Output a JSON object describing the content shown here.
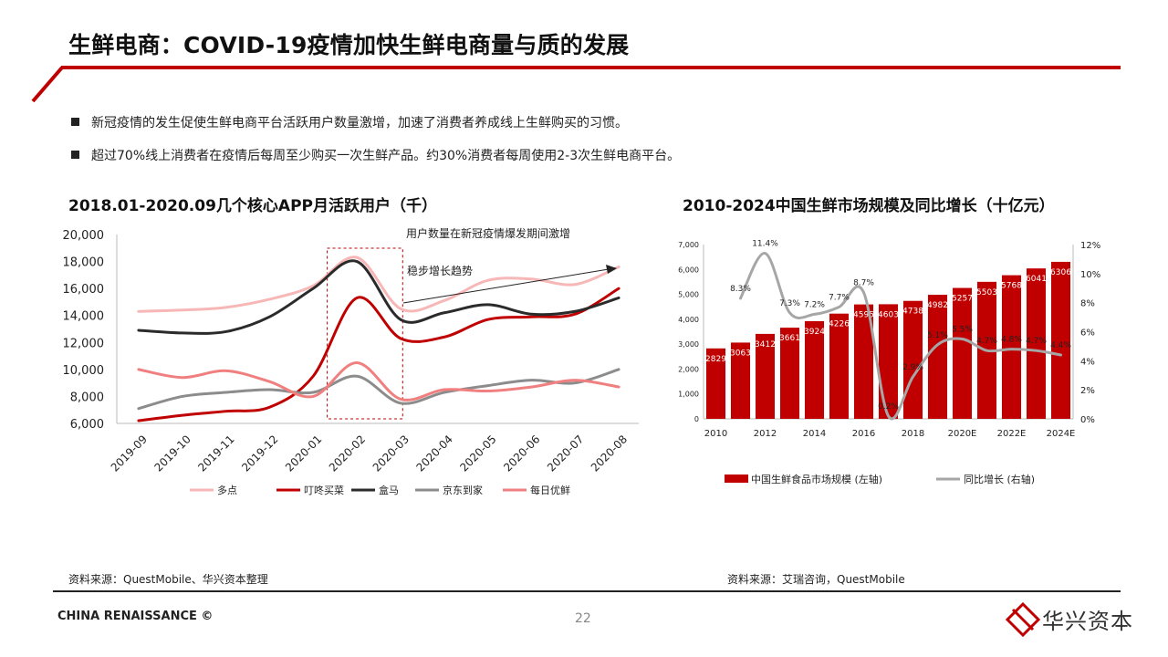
{
  "header": {
    "title": "生鲜电商：COVID-19疫情加快生鲜电商量与质的发展"
  },
  "bullets": [
    "新冠疫情的发生促使生鲜电商平台活跃用户数量激增，加速了消费者养成线上生鲜购买的习惯。",
    "超过70%线上消费者在疫情后每周至少购买一次生鲜产品。约30%消费者每周使用2-3次生鲜电商平台。"
  ],
  "colors": {
    "accent": "#c00000",
    "dark_red": "#c00000"
  },
  "chart_data": [
    {
      "type": "line",
      "title": "2018.01-2020.09几个核心APP月活跃用户（千）",
      "categories": [
        "2019-09",
        "2019-10",
        "2019-11",
        "2019-12",
        "2020-01",
        "2020-02",
        "2020-03",
        "2020-04",
        "2020-05",
        "2020-06",
        "2020-07",
        "2020-08"
      ],
      "ylim": [
        6000,
        20000
      ],
      "yticks": [
        "6,000",
        "8,000",
        "10,000",
        "12,000",
        "14,000",
        "16,000",
        "18,000",
        "20,000"
      ],
      "series": [
        {
          "name": "多点",
          "color": "#f7b7b7",
          "values": [
            14300,
            14400,
            14600,
            15200,
            16200,
            18300,
            14500,
            15100,
            16600,
            16700,
            16300,
            17600
          ]
        },
        {
          "name": "叮咚买菜",
          "color": "#c00000",
          "values": [
            6200,
            6600,
            6900,
            7200,
            9500,
            15300,
            12300,
            12400,
            13700,
            13900,
            14100,
            16000
          ]
        },
        {
          "name": "盒马",
          "color": "#2b2b2b",
          "values": [
            12900,
            12700,
            12800,
            13900,
            16000,
            18000,
            13700,
            14200,
            14800,
            14100,
            14300,
            15300
          ]
        },
        {
          "name": "京东到家",
          "color": "#8c8c8c",
          "values": [
            7100,
            8000,
            8300,
            8500,
            8300,
            9500,
            7500,
            8300,
            8800,
            9200,
            9000,
            10000
          ]
        },
        {
          "name": "每日优鲜",
          "color": "#f08080",
          "values": [
            10000,
            9400,
            9900,
            9100,
            8000,
            10500,
            7800,
            8500,
            8400,
            8700,
            9200,
            8700
          ]
        }
      ],
      "annotations": [
        "用户数量在新冠疫情爆发期间激增",
        "稳步增长趋势"
      ],
      "highlight_range": [
        "2020-01",
        "2020-03"
      ],
      "source": "资料来源：QuestMobile、华兴资本整理"
    },
    {
      "type": "bar+line",
      "title": "2010-2024中国生鲜市场规模及同比增长（十亿元）",
      "categories": [
        "2010",
        "2011",
        "2012",
        "2013",
        "2014",
        "2015",
        "2016",
        "2017",
        "2018",
        "2019",
        "2020E",
        "2021E",
        "2022E",
        "2023E",
        "2024E"
      ],
      "x_tick_labels": [
        "2010",
        "2012",
        "2014",
        "2016",
        "2018",
        "2020E",
        "2022E",
        "2024E"
      ],
      "bar_series": {
        "name": "中国生鲜食品市场规模 (左轴)",
        "color": "#c00000",
        "values": [
          2829,
          3063,
          3412,
          3661,
          3924,
          4226,
          4595,
          4603,
          4738,
          4982,
          5257,
          5503,
          5768,
          6041,
          6306
        ],
        "labels": [
          "2829",
          "3063",
          "3412",
          "3661",
          "3924",
          "4226",
          "4595",
          "4603",
          "4738",
          "4982",
          "5257",
          "5503",
          "5768",
          "6041",
          "6306"
        ]
      },
      "line_series": {
        "name": "同比增长 (右轴)",
        "color": "#a6a6a6",
        "values": [
          null,
          8.3,
          11.4,
          7.3,
          7.2,
          7.7,
          8.7,
          0.2,
          2.9,
          5.1,
          5.5,
          4.7,
          4.8,
          4.7,
          4.4
        ],
        "labels": [
          null,
          "8.3%",
          "11.4%",
          "7.3%",
          "7.2%",
          "7.7%",
          "8.7%",
          "0.2%",
          "2.9%",
          "5.1%",
          "5.5%",
          "4.7%",
          "4.8%",
          "4.7%",
          "4.4%"
        ]
      },
      "ylim_left": [
        0,
        7000
      ],
      "yticks_left": [
        "0",
        "1,000",
        "2,000",
        "3,000",
        "4,000",
        "5,000",
        "6,000",
        "7,000"
      ],
      "ylim_right": [
        0,
        12
      ],
      "yticks_right": [
        "0%",
        "2%",
        "4%",
        "6%",
        "8%",
        "10%",
        "12%"
      ],
      "source": "资料来源：艾瑞咨询，QuestMobile"
    }
  ],
  "footer": {
    "company": "CHINA RENAISSANCE ©",
    "page": "22",
    "brand": "华兴资本"
  }
}
